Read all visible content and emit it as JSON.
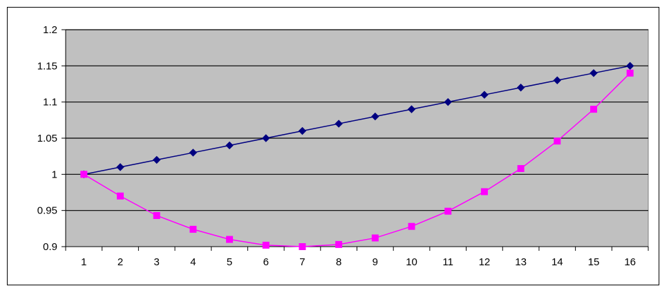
{
  "chart_data": {
    "type": "line",
    "title": "",
    "xlabel": "",
    "ylabel": "",
    "categories": [
      "1",
      "2",
      "3",
      "4",
      "5",
      "6",
      "7",
      "8",
      "9",
      "10",
      "11",
      "12",
      "13",
      "14",
      "15",
      "16"
    ],
    "ylim": [
      0.9,
      1.2
    ],
    "yticks": [
      "0.9",
      "0.95",
      "1",
      "1.05",
      "1.1",
      "1.15",
      "1.2"
    ],
    "grid": true,
    "legend": "none",
    "plot_background": "#C0C0C0",
    "series": [
      {
        "color": "#000080",
        "marker": "diamond",
        "values": [
          1.0,
          1.01,
          1.02,
          1.03,
          1.04,
          1.05,
          1.06,
          1.07,
          1.08,
          1.09,
          1.1,
          1.11,
          1.12,
          1.13,
          1.14,
          1.15
        ]
      },
      {
        "color": "#FF00FF",
        "marker": "square",
        "values": [
          1.0,
          0.97,
          0.943,
          0.924,
          0.91,
          0.902,
          0.9,
          0.903,
          0.912,
          0.928,
          0.949,
          0.976,
          1.008,
          1.046,
          1.09,
          1.14
        ]
      }
    ]
  }
}
